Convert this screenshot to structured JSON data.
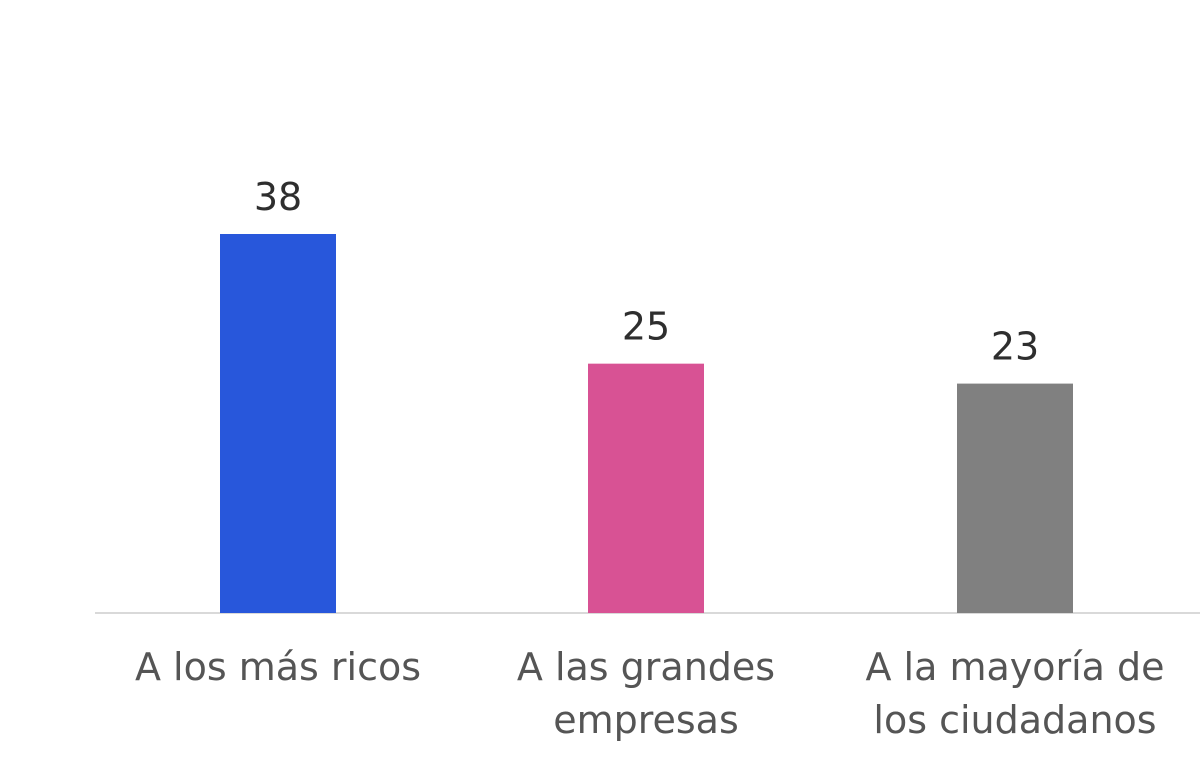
{
  "chart_data": {
    "type": "bar",
    "categories": [
      [
        "A los más ricos"
      ],
      [
        "A las grandes",
        "empresas"
      ],
      [
        "A la mayoría de",
        "los ciudadanos"
      ]
    ],
    "values": [
      38,
      25,
      23
    ],
    "colors": [
      "#2857DB",
      "#D85294",
      "#808080"
    ],
    "axis_color": "#D9D9D9",
    "grid": false,
    "legend": "none",
    "data_labels": true
  }
}
